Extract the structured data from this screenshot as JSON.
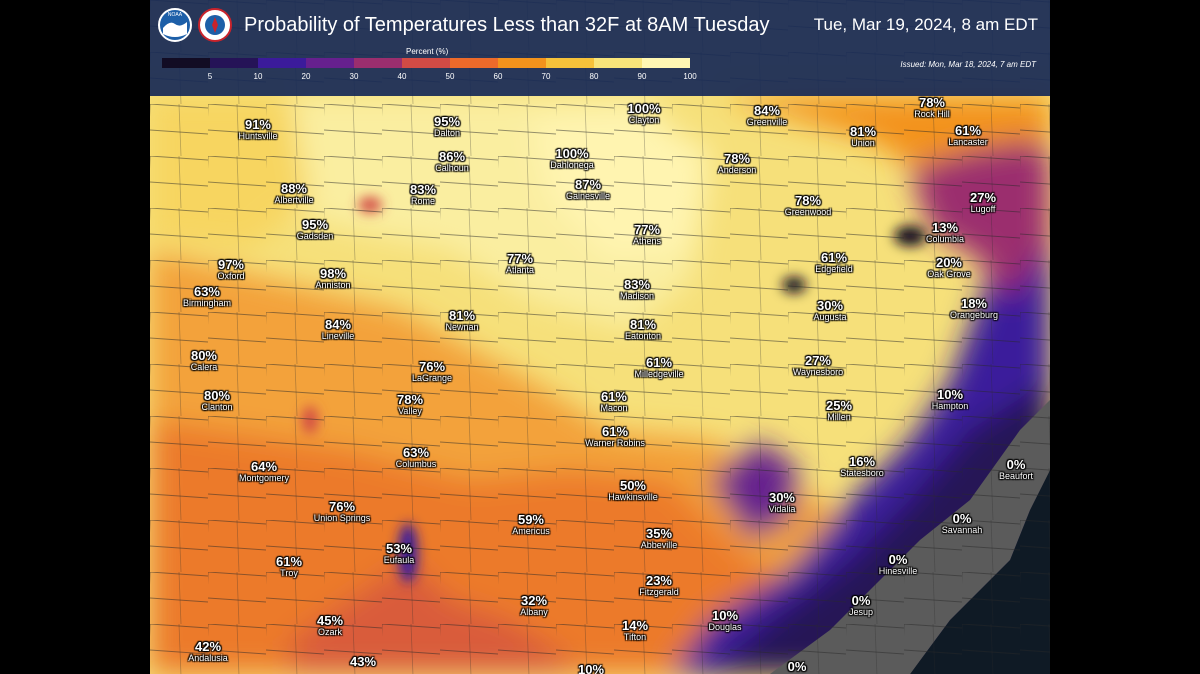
{
  "header": {
    "title": "Probability of Temperatures Less than 32F at 8AM Tuesday",
    "valid_time": "Tue, Mar 19, 2024, 8 am EDT",
    "issued": "Issued: Mon, Mar 18, 2024, 7 am EDT",
    "noaa_text": "NOAA"
  },
  "colorbar": {
    "title": "Percent (%)",
    "ticks": [
      "5",
      "10",
      "20",
      "30",
      "40",
      "50",
      "60",
      "70",
      "80",
      "90",
      "100"
    ],
    "colors": [
      "#120c24",
      "#251357",
      "#3b1b9b",
      "#66208e",
      "#9b2e6e",
      "#d24b45",
      "#ec6a2a",
      "#f3931c",
      "#f6c23a",
      "#f7e47a",
      "#fff7b3"
    ]
  },
  "labels": [
    {
      "pct": "91%",
      "city": "Huntsville"
    },
    {
      "pct": "95%",
      "city": "Dalton"
    },
    {
      "pct": "100%",
      "city": "Clayton"
    },
    {
      "pct": "84%",
      "city": "Greenville"
    },
    {
      "pct": "78%",
      "city": "Rock Hill"
    },
    {
      "pct": "81%",
      "city": "Union"
    },
    {
      "pct": "61%",
      "city": "Lancaster"
    },
    {
      "pct": "86%",
      "city": "Calhoun"
    },
    {
      "pct": "100%",
      "city": "Dahlonega"
    },
    {
      "pct": "78%",
      "city": "Anderson"
    },
    {
      "pct": "88%",
      "city": "Albertville"
    },
    {
      "pct": "83%",
      "city": "Rome"
    },
    {
      "pct": "87%",
      "city": "Gainesville"
    },
    {
      "pct": "78%",
      "city": "Greenwood"
    },
    {
      "pct": "27%",
      "city": "Lugoff"
    },
    {
      "pct": "95%",
      "city": "Gadsden"
    },
    {
      "pct": "13%",
      "city": "Columbia"
    },
    {
      "pct": "77%",
      "city": "Athens"
    },
    {
      "pct": "97%",
      "city": "Oxford"
    },
    {
      "pct": "77%",
      "city": "Atlanta"
    },
    {
      "pct": "61%",
      "city": "Edgefield"
    },
    {
      "pct": "20%",
      "city": "Oak Grove"
    },
    {
      "pct": "98%",
      "city": "Anniston"
    },
    {
      "pct": "63%",
      "city": "Birmingham"
    },
    {
      "pct": "83%",
      "city": "Madison"
    },
    {
      "pct": "30%",
      "city": "Augusta"
    },
    {
      "pct": "18%",
      "city": "Orangeburg"
    },
    {
      "pct": "84%",
      "city": "Lineville"
    },
    {
      "pct": "81%",
      "city": "Newnan"
    },
    {
      "pct": "81%",
      "city": "Eatonton"
    },
    {
      "pct": "80%",
      "city": "Calera"
    },
    {
      "pct": "76%",
      "city": "LaGrange"
    },
    {
      "pct": "61%",
      "city": "Milledgeville"
    },
    {
      "pct": "27%",
      "city": "Waynesboro"
    },
    {
      "pct": "80%",
      "city": "Clanton"
    },
    {
      "pct": "78%",
      "city": "Valley"
    },
    {
      "pct": "61%",
      "city": "Macon"
    },
    {
      "pct": "25%",
      "city": "Millen"
    },
    {
      "pct": "10%",
      "city": "Hampton"
    },
    {
      "pct": "61%",
      "city": "Warner Robins"
    },
    {
      "pct": "63%",
      "city": "Columbus"
    },
    {
      "pct": "64%",
      "city": "Montgomery"
    },
    {
      "pct": "16%",
      "city": "Statesboro"
    },
    {
      "pct": "0%",
      "city": "Beaufort"
    },
    {
      "pct": "50%",
      "city": "Hawkinsville"
    },
    {
      "pct": "76%",
      "city": "Union Springs"
    },
    {
      "pct": "30%",
      "city": "Vidalia"
    },
    {
      "pct": "59%",
      "city": "Americus"
    },
    {
      "pct": "0%",
      "city": "Savannah"
    },
    {
      "pct": "35%",
      "city": "Abbeville"
    },
    {
      "pct": "53%",
      "city": "Eufaula"
    },
    {
      "pct": "61%",
      "city": "Troy"
    },
    {
      "pct": "0%",
      "city": "Hinesville"
    },
    {
      "pct": "23%",
      "city": "Fitzgerald"
    },
    {
      "pct": "32%",
      "city": "Albany"
    },
    {
      "pct": "45%",
      "city": "Ozark"
    },
    {
      "pct": "10%",
      "city": "Douglas"
    },
    {
      "pct": "0%",
      "city": "Jesup"
    },
    {
      "pct": "14%",
      "city": "Tifton"
    },
    {
      "pct": "42%",
      "city": "Andalusia"
    },
    {
      "pct": "43%",
      "city": ""
    },
    {
      "pct": "10%",
      "city": ""
    },
    {
      "pct": "0%",
      "city": ""
    }
  ]
}
